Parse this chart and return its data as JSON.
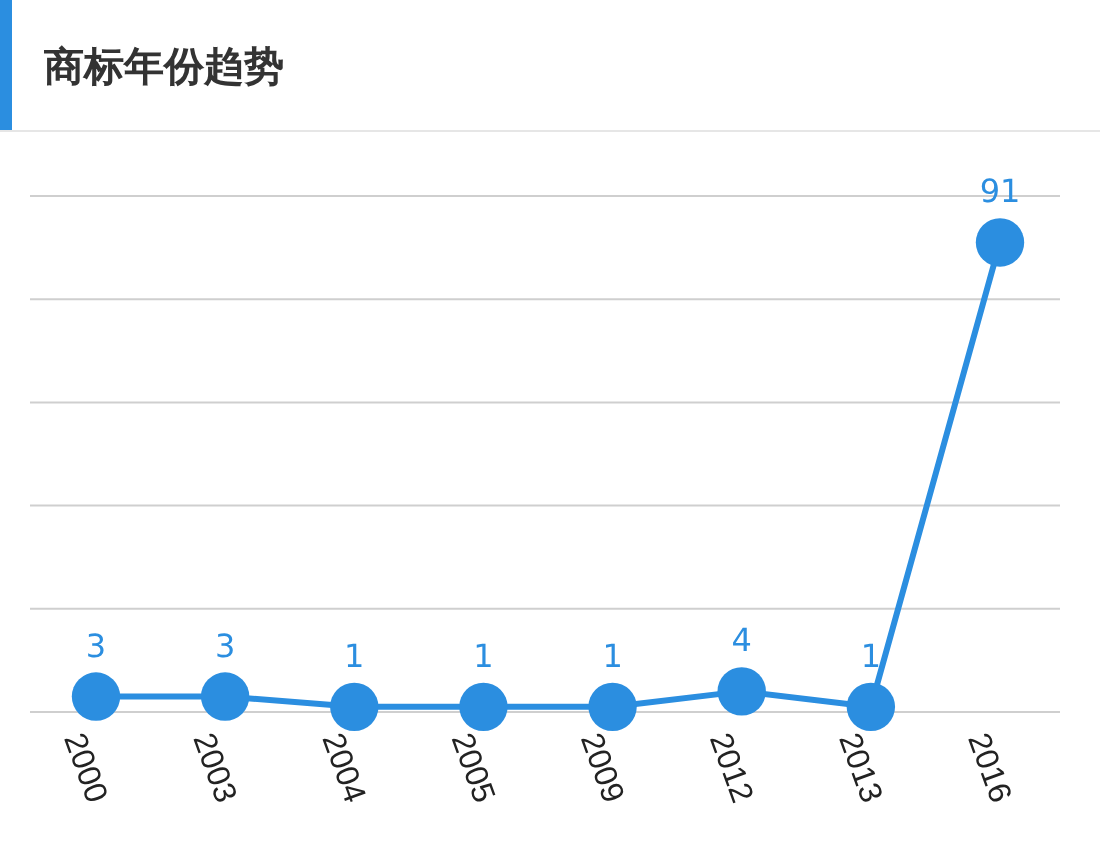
{
  "chart_data": {
    "type": "line",
    "title": "商标年份趋势",
    "categories": [
      "2000",
      "2003",
      "2004",
      "2005",
      "2009",
      "2012",
      "2013",
      "2016"
    ],
    "series": [
      {
        "color": "#2b8ee0",
        "values": [
          3,
          3,
          1,
          1,
          1,
          4,
          1,
          91
        ]
      }
    ],
    "ylim": [
      0,
      100
    ],
    "yticks": [
      {
        "value": 0,
        "label": null
      },
      {
        "value": 20,
        "label": null
      },
      {
        "value": 40,
        "label": null
      },
      {
        "value": 60,
        "label": null
      },
      {
        "value": 80,
        "label": null
      },
      {
        "value": 100,
        "label": null
      }
    ],
    "tick_labels": "x",
    "grid": "y",
    "data_labels": true,
    "marker": "circle",
    "line_style": "solid"
  }
}
